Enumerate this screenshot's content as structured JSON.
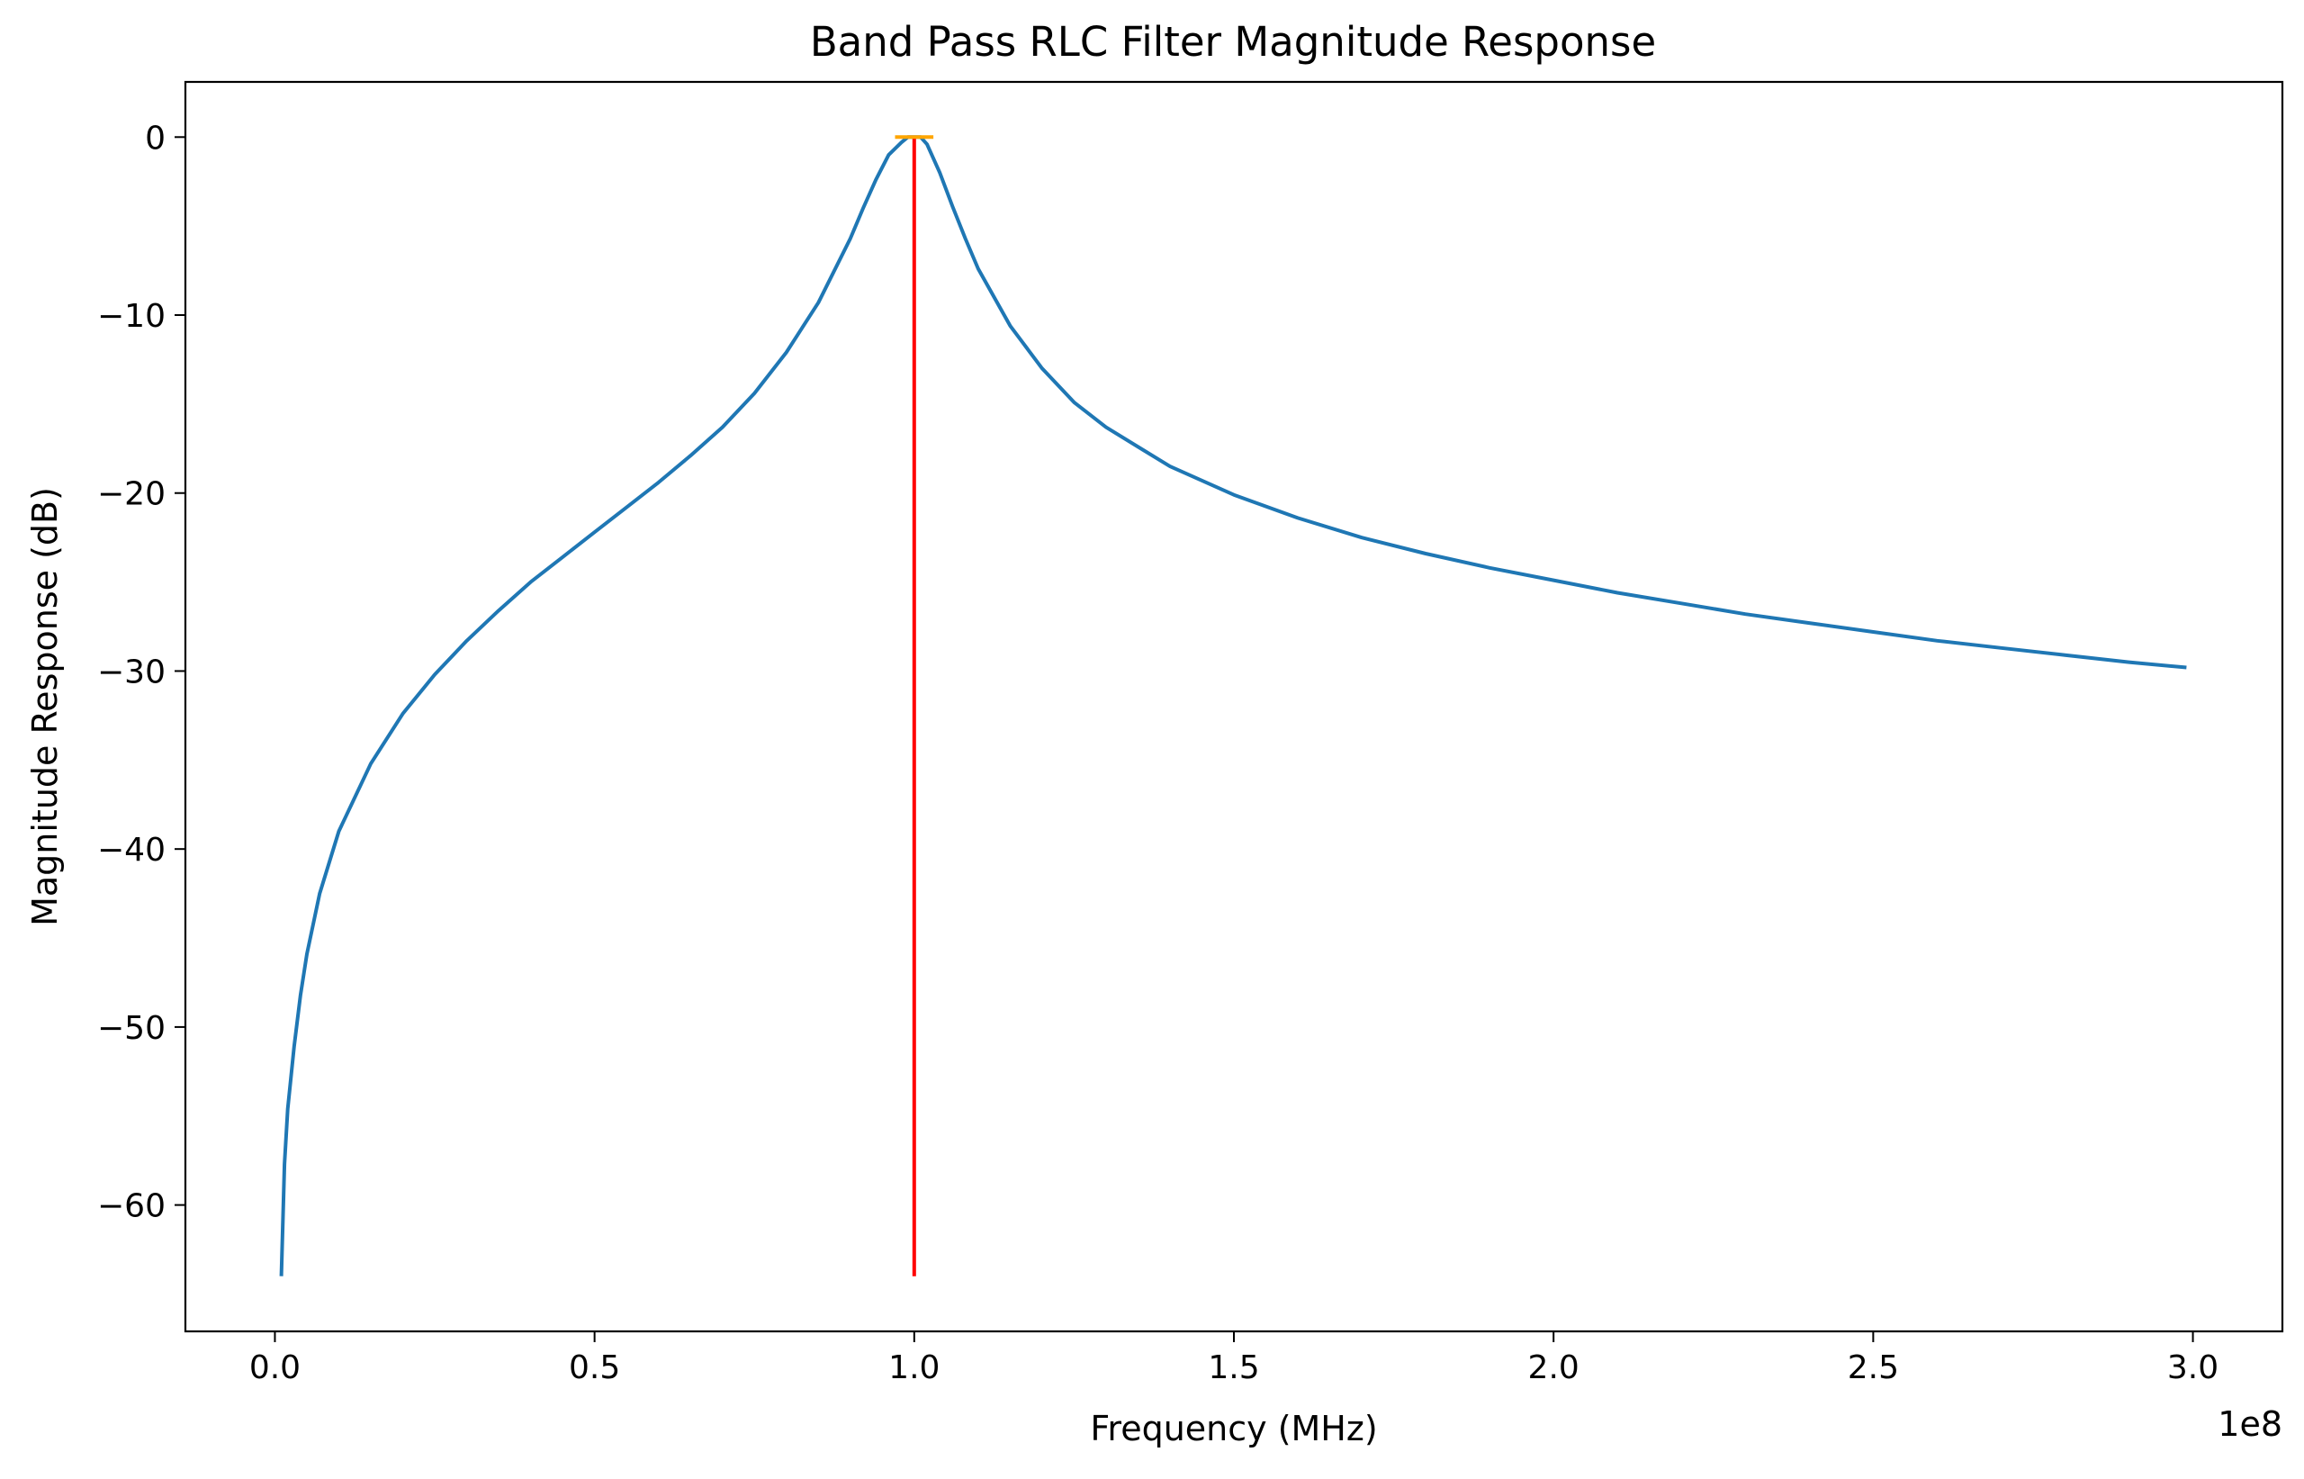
{
  "chart_data": {
    "type": "line",
    "title": "Band Pass RLC Filter Magnitude Response",
    "xlabel": "Frequency (MHz)",
    "ylabel": "Magnitude Response (dB)",
    "x_offset_text": "1e8",
    "xlim": [
      -0.14,
      3.14
    ],
    "ylim": [
      -67.1,
      3.1
    ],
    "x_ticks": [
      0.0,
      0.5,
      1.0,
      1.5,
      2.0,
      2.5,
      3.0
    ],
    "x_tick_labels": [
      "0.0",
      "0.5",
      "1.0",
      "1.5",
      "2.0",
      "2.5",
      "3.0"
    ],
    "y_ticks": [
      0,
      -10,
      -20,
      -30,
      -40,
      -50,
      -60
    ],
    "y_tick_labels": [
      "0",
      "−10",
      "−20",
      "−30",
      "−40",
      "−50",
      "−60"
    ],
    "grid": false,
    "series": [
      {
        "color": "#1f77b4",
        "x": [
          0.01,
          0.015,
          0.02,
          0.03,
          0.04,
          0.05,
          0.07,
          0.1,
          0.15,
          0.2,
          0.25,
          0.3,
          0.35,
          0.4,
          0.45,
          0.5,
          0.55,
          0.6,
          0.65,
          0.7,
          0.75,
          0.8,
          0.85,
          0.9,
          0.92,
          0.94,
          0.96,
          0.98,
          0.99,
          1.0,
          1.01,
          1.02,
          1.04,
          1.06,
          1.08,
          1.1,
          1.15,
          1.2,
          1.25,
          1.3,
          1.4,
          1.5,
          1.6,
          1.7,
          1.8,
          1.9,
          2.0,
          2.1,
          2.2,
          2.3,
          2.4,
          2.5,
          2.6,
          2.7,
          2.8,
          2.9,
          2.99
        ],
        "y": [
          -64.0,
          -57.7,
          -54.6,
          -51.1,
          -48.2,
          -45.9,
          -42.5,
          -39.0,
          -35.2,
          -32.4,
          -30.2,
          -28.3,
          -26.6,
          -25.0,
          -23.6,
          -22.2,
          -20.8,
          -19.4,
          -17.9,
          -16.3,
          -14.4,
          -12.1,
          -9.3,
          -5.7,
          -4.0,
          -2.4,
          -1.0,
          -0.3,
          0.0,
          0.0,
          0.0,
          -0.4,
          -2.0,
          -3.9,
          -5.7,
          -7.4,
          -10.6,
          -13.0,
          -14.9,
          -16.3,
          -18.5,
          -20.1,
          -21.4,
          -22.5,
          -23.4,
          -24.2,
          -24.9,
          -25.6,
          -26.2,
          -26.8,
          -27.3,
          -27.8,
          -28.3,
          -28.7,
          -29.1,
          -29.5,
          -29.8
        ]
      },
      {
        "color": "#ff0000",
        "x": [
          1.0,
          1.0
        ],
        "y": [
          -64.0,
          0.0
        ]
      },
      {
        "color": "#ffa500",
        "x": [
          0.97,
          1.03
        ],
        "y": [
          0.0,
          0.0
        ]
      }
    ]
  }
}
